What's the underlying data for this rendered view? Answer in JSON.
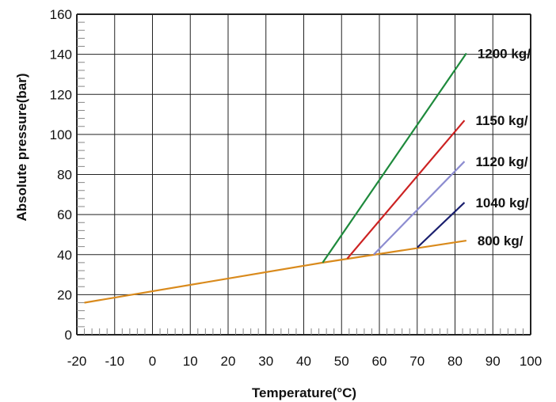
{
  "chart_data": {
    "type": "line",
    "xlabel": "Temperature(°C)",
    "ylabel": "Absolute pressure(bar)",
    "xlim": [
      -20,
      100
    ],
    "ylim": [
      0,
      160
    ],
    "x_ticks": [
      -20,
      -10,
      0,
      10,
      20,
      30,
      40,
      50,
      60,
      70,
      80,
      90,
      100
    ],
    "y_ticks": [
      0,
      20,
      40,
      60,
      80,
      100,
      120,
      140,
      160
    ],
    "grid": true,
    "legend": "labels at right end of lines",
    "series": [
      {
        "name": "800 kg/",
        "color": "#d98a1c",
        "points": [
          [
            -18,
            16
          ],
          [
            45,
            36
          ],
          [
            83,
            47
          ]
        ]
      },
      {
        "name": "1040 kg/",
        "color": "#1a1f6e",
        "points": [
          [
            70,
            43.5
          ],
          [
            82.5,
            66
          ]
        ]
      },
      {
        "name": "1120 kg/",
        "color": "#8c8cd0",
        "points": [
          [
            58.5,
            40
          ],
          [
            82.5,
            86.5
          ]
        ]
      },
      {
        "name": "1150 kg/",
        "color": "#cc2222",
        "points": [
          [
            51.5,
            38
          ],
          [
            82.5,
            107
          ]
        ]
      },
      {
        "name": "1200 kg/",
        "color": "#1e8a3c",
        "points": [
          [
            45,
            36
          ],
          [
            83,
            140.5
          ]
        ]
      }
    ]
  }
}
